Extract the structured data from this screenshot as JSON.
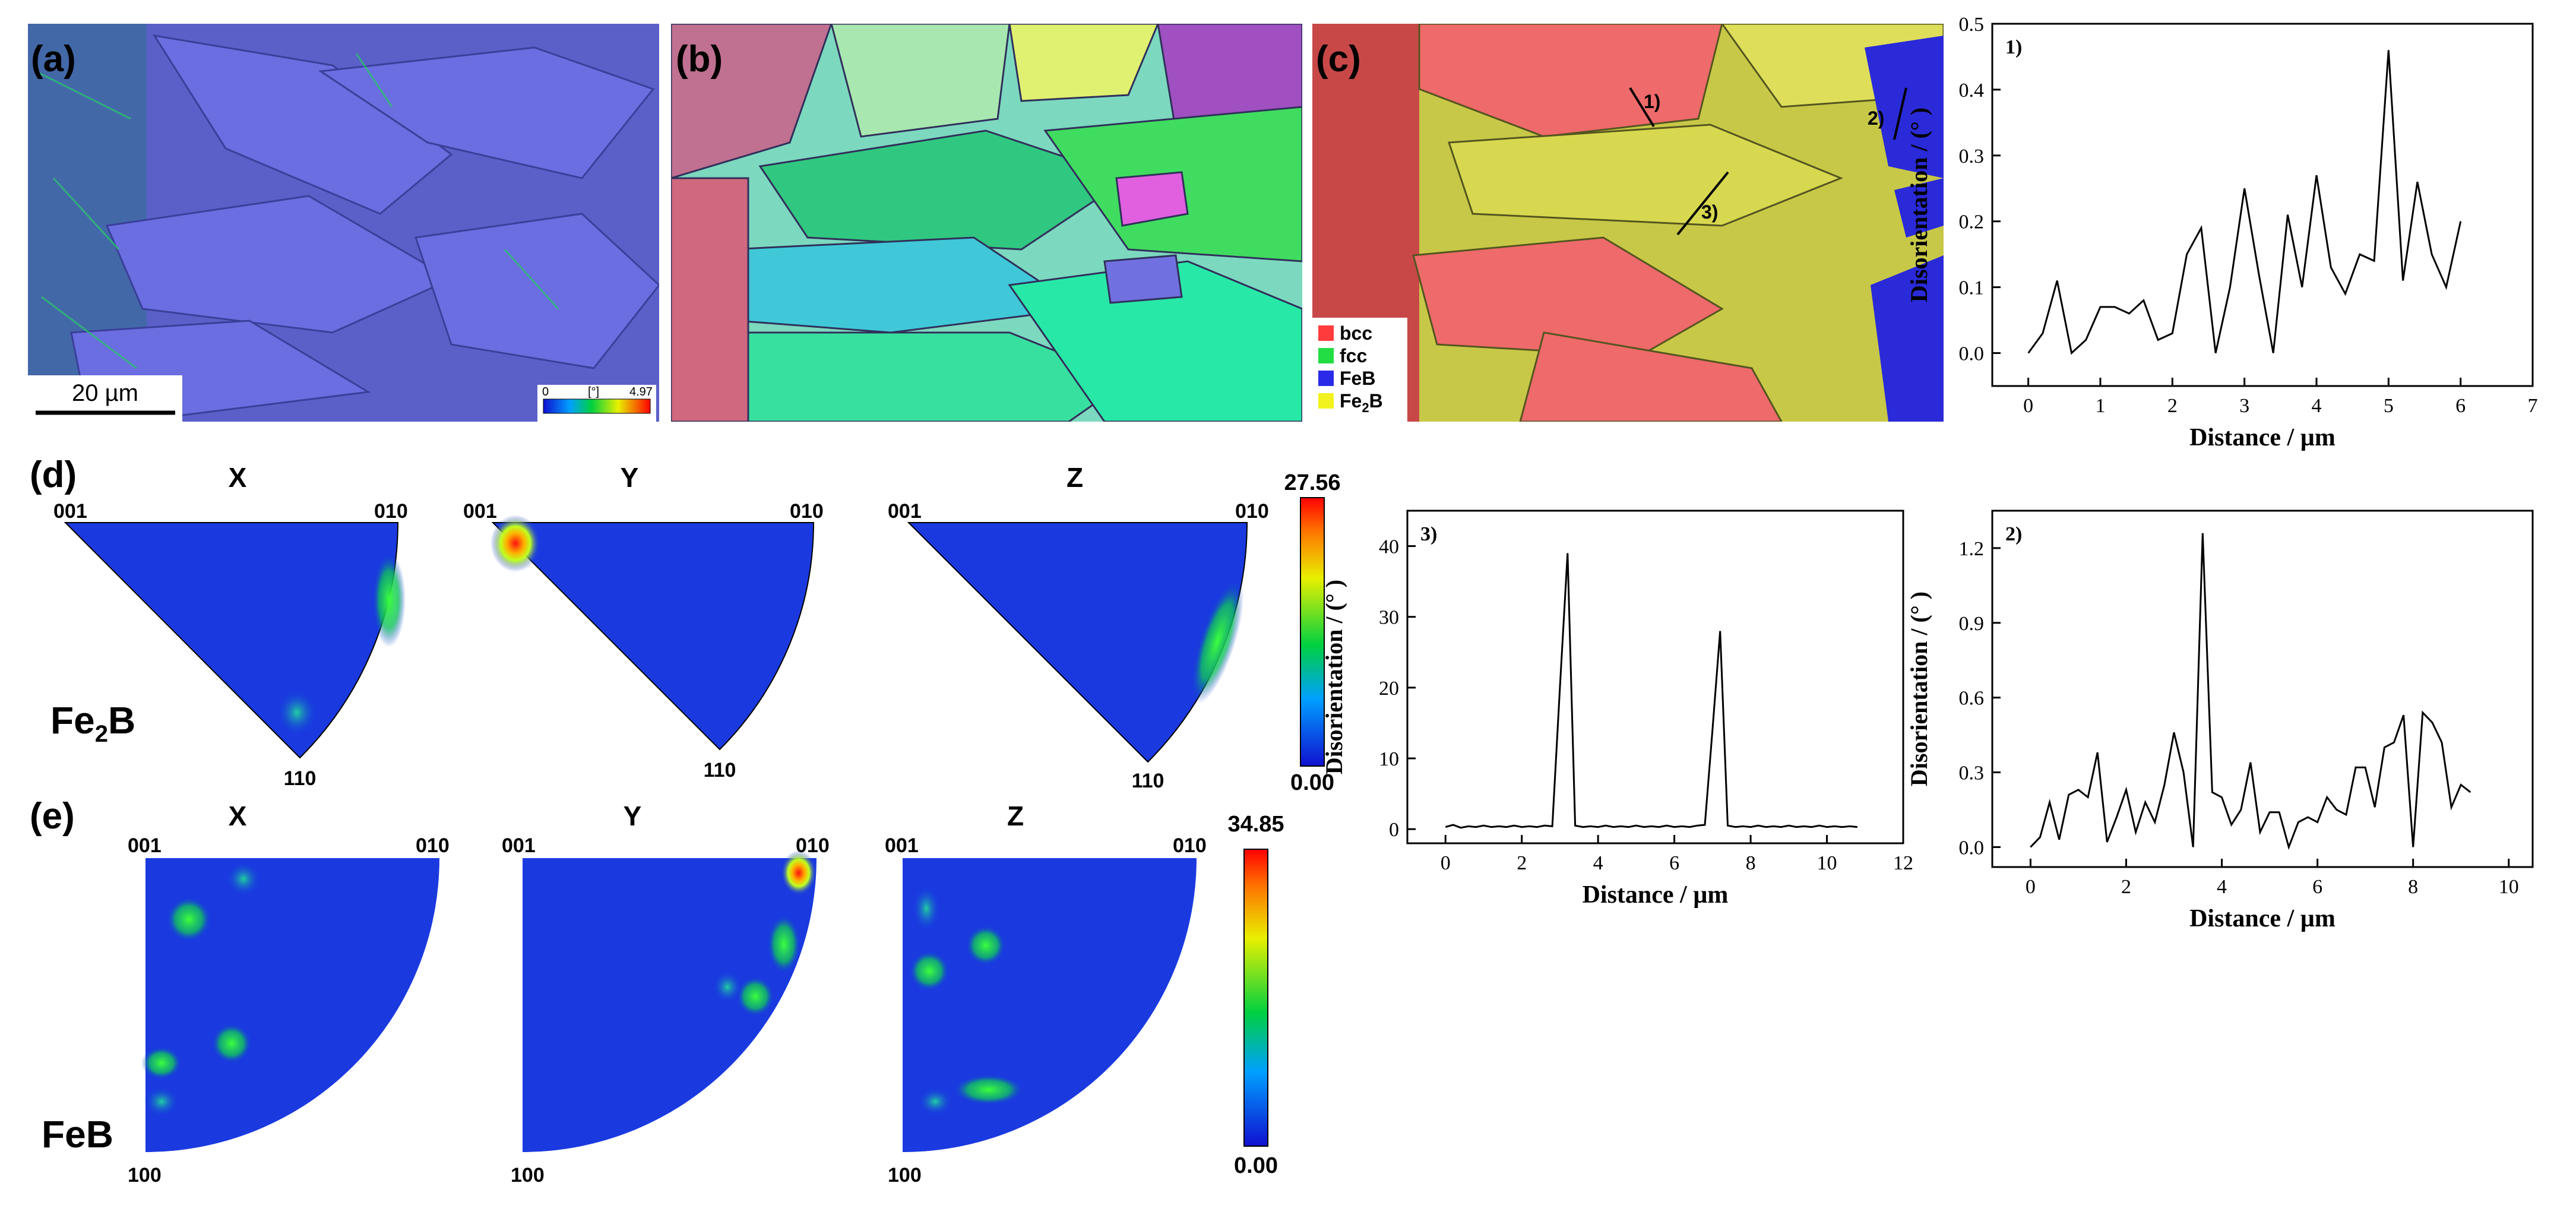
{
  "micrographs": {
    "a": {
      "label": "(a)",
      "scalebar": "20 µm",
      "colorbar_min": "0",
      "colorbar_unit": "[°]",
      "colorbar_max": "4.97"
    },
    "b": {
      "label": "(b)"
    },
    "c": {
      "label": "(c)",
      "markers": [
        "1)",
        "2)",
        "3)"
      ],
      "legend": [
        {
          "name": "bcc",
          "color": "#ff3b3b"
        },
        {
          "name": "fcc",
          "color": "#22dd44"
        },
        {
          "name": "FeB",
          "color": "#2a2ae8"
        },
        {
          "name": "Fe",
          "sub": "2",
          "tail": "B",
          "color": "#f2f21e"
        }
      ]
    }
  },
  "pole_figures": {
    "d": {
      "label": "(d)",
      "phase": "Fe",
      "phase_sub": "2",
      "phase_tail": "B",
      "titles": [
        "X",
        "Y",
        "Z"
      ],
      "corner_labels": [
        "001",
        "010",
        "110"
      ],
      "scale_max": "27.56",
      "scale_min": "0.00"
    },
    "e": {
      "label": "(e)",
      "phase": "FeB",
      "titles": [
        "X",
        "Y",
        "Z"
      ],
      "corner_labels": [
        "001",
        "010",
        "100"
      ],
      "scale_max": "34.85",
      "scale_min": "0.00"
    }
  },
  "chart_data": [
    {
      "type": "line",
      "id": "1)",
      "annotation": "1)",
      "xlabel": "Distance / µm",
      "ylabel": "Disorientation / (° )",
      "xlim": [
        -0.5,
        7
      ],
      "ylim": [
        -0.05,
        0.5
      ],
      "xticks": [
        0,
        1,
        2,
        3,
        4,
        5,
        6,
        7
      ],
      "yticks": [
        0.0,
        0.1,
        0.2,
        0.3,
        0.4,
        0.5
      ],
      "ytick_labels": [
        "0.0",
        "0.1",
        "0.2",
        "0.3",
        "0.4",
        "0.5"
      ],
      "x": [
        0,
        0.2,
        0.4,
        0.6,
        0.8,
        1.0,
        1.2,
        1.4,
        1.6,
        1.8,
        2.0,
        2.2,
        2.4,
        2.6,
        2.8,
        3.0,
        3.2,
        3.4,
        3.6,
        3.8,
        4.0,
        4.2,
        4.4,
        4.6,
        4.8,
        5.0,
        5.2,
        5.4,
        5.6,
        5.8,
        6.0
      ],
      "y": [
        0.0,
        0.03,
        0.11,
        0.0,
        0.02,
        0.07,
        0.07,
        0.06,
        0.08,
        0.02,
        0.03,
        0.15,
        0.19,
        0.0,
        0.1,
        0.25,
        0.12,
        0.0,
        0.21,
        0.1,
        0.27,
        0.13,
        0.09,
        0.15,
        0.14,
        0.46,
        0.11,
        0.26,
        0.15,
        0.1,
        0.2
      ]
    },
    {
      "type": "line",
      "id": "3)",
      "annotation": "3)",
      "xlabel": "Distance / µm",
      "ylabel": "Disorientation / (° )",
      "xlim": [
        -1,
        12
      ],
      "ylim": [
        -2,
        45
      ],
      "xticks": [
        0,
        2,
        4,
        6,
        8,
        10,
        12
      ],
      "yticks": [
        0,
        10,
        20,
        30,
        40
      ],
      "ytick_labels": [
        "0",
        "10",
        "20",
        "30",
        "40"
      ],
      "x": [
        0.0,
        0.2,
        0.4,
        0.6,
        0.8,
        1.0,
        1.2,
        1.4,
        1.6,
        1.8,
        2.0,
        2.2,
        2.4,
        2.6,
        2.8,
        3.0,
        3.2,
        3.4,
        3.6,
        3.8,
        4.0,
        4.2,
        4.4,
        4.6,
        4.8,
        5.0,
        5.2,
        5.4,
        5.6,
        5.8,
        6.0,
        6.2,
        6.4,
        6.6,
        6.8,
        7.0,
        7.2,
        7.4,
        7.6,
        7.8,
        8.0,
        8.2,
        8.4,
        8.6,
        8.8,
        9.0,
        9.2,
        9.4,
        9.6,
        9.8,
        10.0,
        10.2,
        10.4,
        10.6,
        10.8
      ],
      "y": [
        0.3,
        0.6,
        0.2,
        0.4,
        0.3,
        0.5,
        0.3,
        0.4,
        0.3,
        0.5,
        0.3,
        0.4,
        0.3,
        0.5,
        0.4,
        20,
        39,
        0.5,
        0.3,
        0.4,
        0.3,
        0.5,
        0.3,
        0.4,
        0.3,
        0.5,
        0.3,
        0.4,
        0.3,
        0.5,
        0.3,
        0.4,
        0.3,
        0.5,
        0.6,
        14,
        28,
        0.5,
        0.3,
        0.4,
        0.3,
        0.5,
        0.3,
        0.4,
        0.3,
        0.5,
        0.3,
        0.4,
        0.3,
        0.5,
        0.3,
        0.4,
        0.3,
        0.4,
        0.3
      ]
    },
    {
      "type": "line",
      "id": "2)",
      "annotation": "2)",
      "xlabel": "Distance / µm",
      "ylabel": "Disorientation / (° )",
      "xlim": [
        -0.8,
        10.5
      ],
      "ylim": [
        -0.08,
        1.35
      ],
      "xticks": [
        0,
        2,
        4,
        6,
        8,
        10
      ],
      "yticks": [
        0.0,
        0.3,
        0.6,
        0.9,
        1.2
      ],
      "ytick_labels": [
        "0.0",
        "0.3",
        "0.6",
        "0.9",
        "1.2"
      ],
      "x": [
        0.0,
        0.2,
        0.4,
        0.6,
        0.8,
        1.0,
        1.2,
        1.4,
        1.6,
        1.8,
        2.0,
        2.2,
        2.4,
        2.6,
        2.8,
        3.0,
        3.2,
        3.4,
        3.6,
        3.8,
        4.0,
        4.2,
        4.4,
        4.6,
        4.8,
        5.0,
        5.2,
        5.4,
        5.6,
        5.8,
        6.0,
        6.2,
        6.4,
        6.6,
        6.8,
        7.0,
        7.2,
        7.4,
        7.6,
        7.8,
        8.0,
        8.2,
        8.4,
        8.6,
        8.8,
        9.0,
        9.2
      ],
      "y": [
        0.0,
        0.04,
        0.18,
        0.03,
        0.21,
        0.23,
        0.2,
        0.38,
        0.02,
        0.12,
        0.23,
        0.06,
        0.18,
        0.1,
        0.25,
        0.46,
        0.3,
        0.0,
        1.26,
        0.22,
        0.2,
        0.09,
        0.15,
        0.34,
        0.06,
        0.14,
        0.14,
        0.0,
        0.1,
        0.12,
        0.1,
        0.2,
        0.15,
        0.13,
        0.32,
        0.32,
        0.16,
        0.4,
        0.42,
        0.53,
        0.0,
        0.54,
        0.5,
        0.42,
        0.16,
        0.25,
        0.22
      ]
    }
  ]
}
